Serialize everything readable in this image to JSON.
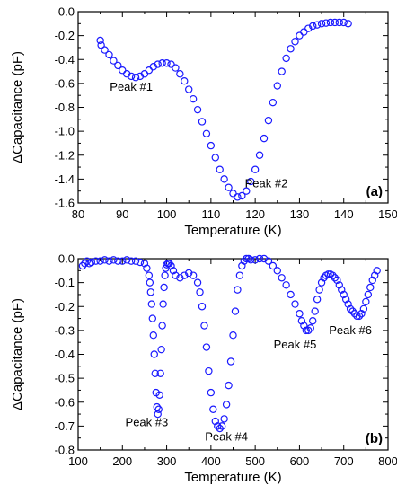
{
  "chart_data": [
    {
      "type": "scatter",
      "panel_label": "(a)",
      "xlabel": "Temperature (K)",
      "ylabel": "ΔCapacitance (pF)",
      "xlim": [
        80,
        150
      ],
      "ylim": [
        -1.6,
        0.0
      ],
      "xticks": [
        80,
        90,
        100,
        110,
        120,
        130,
        140,
        150
      ],
      "yticks": [
        0.0,
        -0.2,
        -0.4,
        -0.6,
        -0.8,
        -1.0,
        -1.2,
        -1.4,
        -1.6
      ],
      "tick_labels_x": [
        "80",
        "90",
        "100",
        "110",
        "120",
        "130",
        "140",
        "150"
      ],
      "tick_labels_y": [
        "0.0",
        "-0.2",
        "-0.4",
        "-0.6",
        "-0.8",
        "-1.0",
        "-1.2",
        "-1.4",
        "-1.6"
      ],
      "marker": "open-circle",
      "color": "#1a1aff",
      "annotations": [
        {
          "text": "Peak #1",
          "x": 92,
          "y": -0.66
        },
        {
          "text": "Peak #2",
          "x": 122.5,
          "y": -1.47
        }
      ],
      "x": [
        85,
        85.2,
        86,
        87,
        88,
        89,
        90,
        91,
        92,
        93,
        94,
        95,
        96,
        97,
        98,
        99,
        100,
        101,
        102,
        103,
        104,
        105,
        106,
        107,
        108,
        109,
        110,
        111,
        112,
        113,
        114,
        115,
        116,
        117,
        118,
        119,
        120,
        121,
        122,
        123,
        124,
        125,
        126,
        127,
        128,
        129,
        130,
        131,
        132,
        133,
        134,
        135,
        136,
        137,
        138,
        139,
        140,
        141
      ],
      "y": [
        -0.24,
        -0.28,
        -0.32,
        -0.36,
        -0.41,
        -0.45,
        -0.49,
        -0.52,
        -0.54,
        -0.55,
        -0.54,
        -0.52,
        -0.49,
        -0.46,
        -0.44,
        -0.43,
        -0.43,
        -0.44,
        -0.47,
        -0.52,
        -0.58,
        -0.65,
        -0.73,
        -0.82,
        -0.92,
        -1.02,
        -1.12,
        -1.22,
        -1.32,
        -1.4,
        -1.47,
        -1.52,
        -1.55,
        -1.54,
        -1.5,
        -1.42,
        -1.32,
        -1.2,
        -1.06,
        -0.91,
        -0.76,
        -0.62,
        -0.5,
        -0.39,
        -0.31,
        -0.25,
        -0.2,
        -0.17,
        -0.14,
        -0.12,
        -0.11,
        -0.1,
        -0.095,
        -0.09,
        -0.09,
        -0.09,
        -0.09,
        -0.1
      ]
    },
    {
      "type": "scatter",
      "panel_label": "(b)",
      "xlabel": "Temperature (K)",
      "ylabel": "ΔCapacitance (pF)",
      "xlim": [
        100,
        800
      ],
      "ylim": [
        -0.8,
        0.0
      ],
      "xticks": [
        100,
        200,
        300,
        400,
        500,
        600,
        700,
        800
      ],
      "yticks": [
        0.0,
        -0.1,
        -0.2,
        -0.3,
        -0.4,
        -0.5,
        -0.6,
        -0.7,
        -0.8
      ],
      "tick_labels_x": [
        "100",
        "200",
        "300",
        "400",
        "500",
        "600",
        "700",
        "800"
      ],
      "tick_labels_y": [
        "0.0",
        "-0.1",
        "-0.2",
        "-0.3",
        "-0.4",
        "-0.5",
        "-0.6",
        "-0.7",
        "-0.8"
      ],
      "marker": "open-circle",
      "color": "#1a1aff",
      "annotations": [
        {
          "text": "Peak #3",
          "x": 255,
          "y": -0.7
        },
        {
          "text": "Peak #4",
          "x": 435,
          "y": -0.76
        },
        {
          "text": "Peak #5",
          "x": 590,
          "y": -0.375
        },
        {
          "text": "Peak #6",
          "x": 715,
          "y": -0.315
        }
      ],
      "x": [
        110,
        115,
        120,
        125,
        130,
        140,
        150,
        160,
        170,
        180,
        190,
        200,
        210,
        220,
        230,
        240,
        250,
        255,
        260,
        262,
        264,
        266,
        268,
        270,
        272,
        274,
        276,
        278,
        280,
        282,
        284,
        286,
        288,
        290,
        292,
        294,
        296,
        298,
        300,
        303,
        306,
        310,
        315,
        320,
        330,
        340,
        350,
        360,
        370,
        375,
        380,
        385,
        390,
        395,
        400,
        405,
        410,
        415,
        420,
        425,
        430,
        435,
        440,
        445,
        450,
        455,
        460,
        465,
        470,
        475,
        480,
        485,
        490,
        500,
        510,
        520,
        530,
        540,
        550,
        560,
        570,
        580,
        590,
        600,
        605,
        610,
        615,
        620,
        625,
        630,
        635,
        640,
        645,
        650,
        655,
        660,
        665,
        670,
        675,
        680,
        685,
        690,
        695,
        700,
        705,
        710,
        715,
        720,
        725,
        730,
        735,
        740,
        745,
        750,
        755,
        760,
        765,
        770,
        775
      ],
      "y": [
        -0.03,
        -0.02,
        -0.01,
        -0.02,
        -0.015,
        -0.01,
        -0.01,
        -0.005,
        -0.01,
        -0.005,
        -0.01,
        -0.01,
        -0.005,
        -0.01,
        -0.01,
        -0.015,
        -0.02,
        -0.04,
        -0.07,
        -0.1,
        -0.14,
        -0.19,
        -0.25,
        -0.32,
        -0.4,
        -0.48,
        -0.56,
        -0.62,
        -0.65,
        -0.63,
        -0.57,
        -0.48,
        -0.38,
        -0.28,
        -0.19,
        -0.12,
        -0.07,
        -0.04,
        -0.025,
        -0.02,
        -0.02,
        -0.03,
        -0.05,
        -0.07,
        -0.08,
        -0.07,
        -0.06,
        -0.07,
        -0.1,
        -0.14,
        -0.2,
        -0.28,
        -0.37,
        -0.47,
        -0.56,
        -0.63,
        -0.68,
        -0.7,
        -0.71,
        -0.7,
        -0.67,
        -0.61,
        -0.53,
        -0.43,
        -0.32,
        -0.22,
        -0.13,
        -0.07,
        -0.03,
        -0.01,
        0.0,
        0.0,
        -0.005,
        -0.005,
        0.0,
        0.0,
        -0.01,
        -0.03,
        -0.05,
        -0.08,
        -0.11,
        -0.15,
        -0.19,
        -0.23,
        -0.26,
        -0.28,
        -0.3,
        -0.3,
        -0.29,
        -0.26,
        -0.22,
        -0.17,
        -0.13,
        -0.1,
        -0.08,
        -0.07,
        -0.065,
        -0.065,
        -0.07,
        -0.08,
        -0.09,
        -0.11,
        -0.13,
        -0.15,
        -0.17,
        -0.19,
        -0.21,
        -0.22,
        -0.23,
        -0.24,
        -0.24,
        -0.23,
        -0.21,
        -0.18,
        -0.15,
        -0.12,
        -0.09,
        -0.07,
        -0.05
      ]
    }
  ]
}
